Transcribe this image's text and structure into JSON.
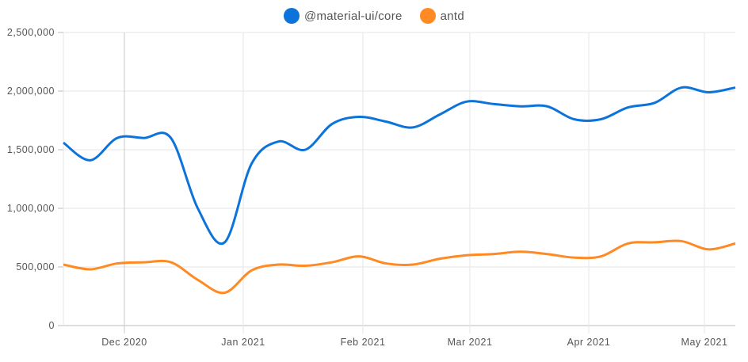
{
  "legend": [
    {
      "label": "@material-ui/core",
      "color": "#0b73da"
    },
    {
      "label": "antd",
      "color": "#ff8a24"
    }
  ],
  "chart_data": {
    "type": "line",
    "title": "",
    "xlabel": "",
    "ylabel": "",
    "ylim": [
      0,
      2500000
    ],
    "y_ticks": [
      "0",
      "500,000",
      "1,000,000",
      "1,500,000",
      "2,000,000",
      "2,500,000"
    ],
    "x_ticks": [
      "Dec 2020",
      "Jan 2021",
      "Feb 2021",
      "Mar 2021",
      "Apr 2021",
      "May 2021"
    ],
    "grid": true,
    "legend_position": "top",
    "x": [
      "2020-11-15",
      "2020-11-22",
      "2020-11-29",
      "2020-12-06",
      "2020-12-13",
      "2020-12-20",
      "2020-12-27",
      "2021-01-03",
      "2021-01-10",
      "2021-01-17",
      "2021-01-24",
      "2021-01-31",
      "2021-02-07",
      "2021-02-14",
      "2021-02-21",
      "2021-02-28",
      "2021-03-07",
      "2021-03-14",
      "2021-03-21",
      "2021-03-28",
      "2021-04-04",
      "2021-04-11",
      "2021-04-18",
      "2021-04-25",
      "2021-05-02",
      "2021-05-09"
    ],
    "series": [
      {
        "name": "@material-ui/core",
        "color": "#0b73da",
        "values": [
          1560000,
          1410000,
          1600000,
          1600000,
          1600000,
          1000000,
          710000,
          1380000,
          1570000,
          1500000,
          1720000,
          1780000,
          1740000,
          1690000,
          1800000,
          1910000,
          1890000,
          1870000,
          1870000,
          1760000,
          1760000,
          1860000,
          1900000,
          2030000,
          1990000,
          2030000
        ]
      },
      {
        "name": "antd",
        "color": "#ff8a24",
        "values": [
          520000,
          480000,
          530000,
          540000,
          540000,
          390000,
          280000,
          470000,
          520000,
          510000,
          540000,
          590000,
          530000,
          520000,
          570000,
          600000,
          610000,
          630000,
          610000,
          580000,
          590000,
          700000,
          710000,
          720000,
          650000,
          700000
        ]
      }
    ]
  }
}
